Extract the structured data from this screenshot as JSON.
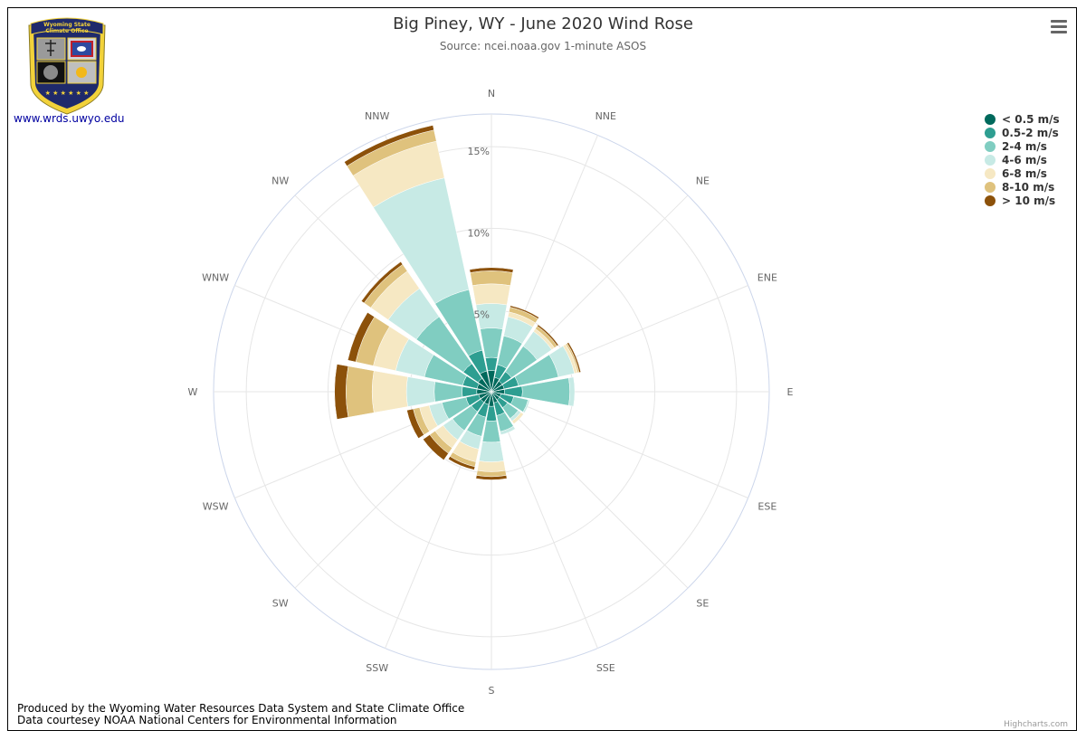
{
  "chart_data": {
    "type": "windrose",
    "title": "Big Piney, WY - June 2020 Wind Rose",
    "subtitle": "Source: ncei.noaa.gov 1-minute ASOS",
    "directions": [
      "N",
      "NNE",
      "NE",
      "ENE",
      "E",
      "ESE",
      "SE",
      "SSE",
      "S",
      "SSW",
      "SW",
      "WSW",
      "W",
      "WNW",
      "NW",
      "NNW"
    ],
    "radial_ticks": [
      {
        "value": 5,
        "label": "5%"
      },
      {
        "value": 10,
        "label": "10%"
      },
      {
        "value": 15,
        "label": "15%"
      }
    ],
    "radial_max": 17,
    "stacking": "normal",
    "series": [
      {
        "name": "< 0.5 m/s",
        "color": "#00695c",
        "values": [
          1.3,
          0.9,
          0.8,
          0.8,
          0.8,
          0.6,
          0.6,
          0.7,
          0.9,
          0.8,
          0.8,
          0.8,
          0.9,
          0.9,
          1.0,
          1.3
        ]
      },
      {
        "name": "0.5-2 m/s",
        "color": "#2e9e91",
        "values": [
          0.8,
          0.8,
          0.7,
          0.9,
          1.1,
          0.8,
          0.6,
          0.8,
          0.9,
          0.8,
          0.7,
          0.8,
          0.9,
          0.9,
          1.1,
          1.3
        ]
      },
      {
        "name": "2-4 m/s",
        "color": "#80cdc1",
        "values": [
          1.8,
          1.8,
          1.9,
          2.5,
          2.9,
          0.9,
          0.8,
          1.0,
          1.3,
          1.2,
          1.4,
          1.5,
          1.7,
          2.4,
          3.5,
          3.8
        ]
      },
      {
        "name": "4-6 m/s",
        "color": "#c7eae5",
        "values": [
          1.5,
          1.2,
          1.1,
          1.0,
          0.3,
          0.1,
          0.2,
          0.2,
          1.2,
          0.8,
          0.7,
          0.8,
          1.7,
          1.8,
          2.1,
          7.0
        ]
      },
      {
        "name": "6-8 m/s",
        "color": "#f6e8c3",
        "values": [
          1.2,
          0.3,
          0.2,
          0.2,
          0.0,
          0.0,
          0.2,
          0.0,
          0.6,
          0.8,
          0.6,
          0.6,
          2.1,
          1.4,
          1.3,
          2.3
        ]
      },
      {
        "name": "8-10 m/s",
        "color": "#dfc27d",
        "values": [
          0.8,
          0.3,
          0.2,
          0.1,
          0.0,
          0.0,
          0.0,
          0.0,
          0.3,
          0.3,
          0.4,
          0.4,
          1.6,
          1.1,
          0.5,
          0.7
        ]
      },
      {
        "name": "> 10 m/s",
        "color": "#8c510a",
        "values": [
          0.2,
          0.1,
          0.1,
          0.1,
          0.0,
          0.0,
          0.0,
          0.0,
          0.2,
          0.2,
          0.5,
          0.4,
          0.7,
          0.5,
          0.2,
          0.3
        ]
      }
    ],
    "legend_position": "top-right"
  },
  "logo": {
    "name": "Wyoming State Climate Office",
    "line1": "Wyoming State",
    "line2": "Climate Office",
    "link_text": "www.wrds.uwyo.edu"
  },
  "footer": {
    "line1": "Produced by the Wyoming Water Resources Data System and State Climate Office",
    "line2": "Data courtesey NOAA National Centers for Environmental Information"
  },
  "credits": "Highcharts.com",
  "colors": {
    "grid": "#e6e6e6",
    "outer_ring": "#ccd6eb",
    "logo_navy": "#1f2a6b",
    "logo_gold": "#f2d23a"
  }
}
